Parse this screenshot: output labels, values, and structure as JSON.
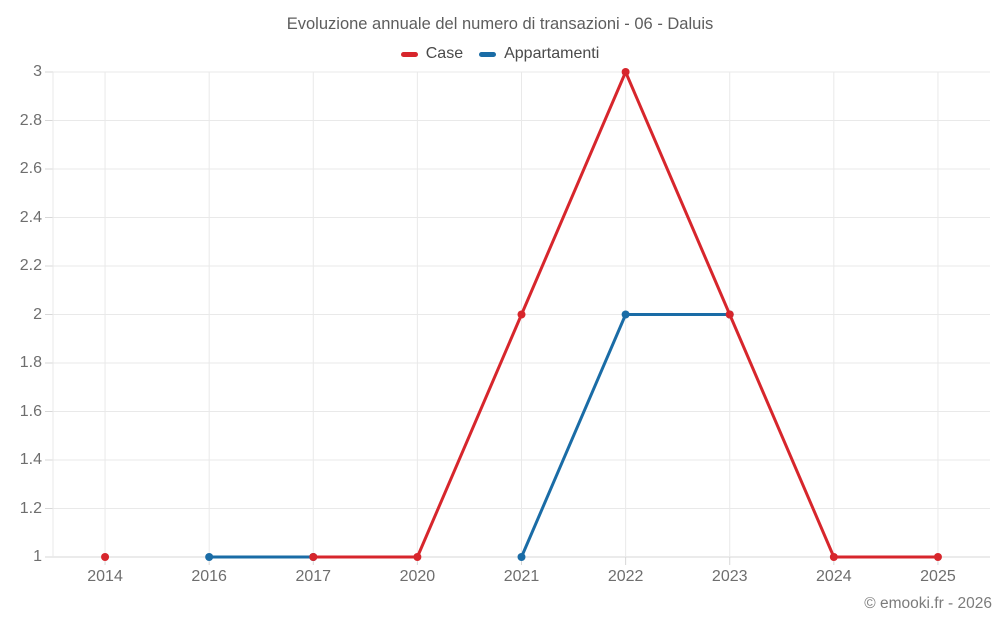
{
  "credit": "© emooki.fr - 2026",
  "style": {
    "background": "#ffffff",
    "grid_color": "#e9e9e9",
    "axis_color": "#d7d7d7",
    "tick_label_color": "#6e6e6e",
    "title_color": "#5d5d5d",
    "legend_text_color": "#4a4a4a",
    "credit_color": "#7b7b7b"
  },
  "chart_data": {
    "type": "line",
    "title": "Evoluzione annuale del numero di transazioni - 06 - Daluis",
    "xlabel": "",
    "ylabel": "",
    "categories": [
      "2014",
      "2016",
      "2017",
      "2020",
      "2021",
      "2022",
      "2023",
      "2024",
      "2025"
    ],
    "series": [
      {
        "name": "Case",
        "color": "#d7262c",
        "values": [
          1,
          null,
          1,
          1,
          2,
          3,
          2,
          1,
          1
        ]
      },
      {
        "name": "Appartamenti",
        "color": "#1a6ca6",
        "values": [
          null,
          1,
          1,
          null,
          1,
          2,
          2,
          null,
          null
        ]
      }
    ],
    "ylim": [
      1,
      3
    ],
    "y_ticks": [
      1,
      1.2,
      1.4,
      1.6,
      1.8,
      2,
      2.2,
      2.4,
      2.6,
      2.8,
      3
    ],
    "y_tick_labels": [
      "1",
      "1.2",
      "1.4",
      "1.6",
      "1.8",
      "2",
      "2.2",
      "2.4",
      "2.6",
      "2.8",
      "3"
    ],
    "grid": true,
    "legend_position": "top",
    "marker_radius": 4,
    "line_width": 3,
    "missing_data": "gap"
  }
}
